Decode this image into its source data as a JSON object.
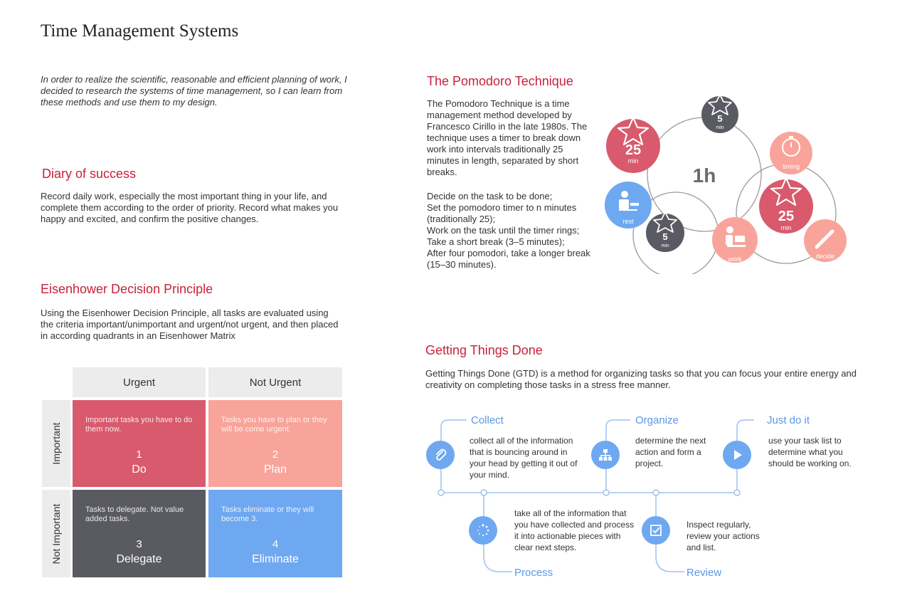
{
  "page": {
    "title": "Time Management Systems",
    "intro": "In order to realize the scientific, reasonable and efficient planning of work, I decided to research the systems of time management, so I can learn from these methods and use them to my design."
  },
  "diary": {
    "title": "Diary of success",
    "text": "Record daily work, especially the most important thing in your life, and complete them according to the order of priority. Record what makes you happy and excited, and confirm the positive changes."
  },
  "eisenhower": {
    "title": "Eisenhower Decision Principle",
    "text": "Using the Eisenhower Decision Principle, all tasks are evaluated using the criteria important/unimportant and urgent/not urgent, and then placed in according quadrants in an Eisenhower Matrix",
    "col_headers": [
      "Urgent",
      "Not Urgent"
    ],
    "row_headers": [
      "Important",
      "Not Important"
    ],
    "quadrants": [
      {
        "desc": "Important tasks you have to do them now.",
        "num": "1",
        "label": "Do",
        "color": "#d85a6c"
      },
      {
        "desc": "Tasks you have to plan or they will be come urgent.",
        "num": "2",
        "label": "Plan",
        "color": "#f8a49a"
      },
      {
        "desc": "Tasks to delegate. Not value added tasks.",
        "num": "3",
        "label": "Delegate",
        "color": "#5a5a63"
      },
      {
        "desc": "Tasks eliminate or they will become 3.",
        "num": "4",
        "label": "Eliminate",
        "color": "#6ea8f0"
      }
    ]
  },
  "pomodoro": {
    "title": "The Pomodoro Technique",
    "text1": "The Pomodoro Technique is a time management method developed by Francesco Cirillo in the late 1980s. The technique uses a timer to break down work into intervals traditionally 25 minutes in length, separated by short breaks.",
    "steps": [
      "Decide on the task to be done;",
      "Set the pomodoro timer to n minutes (traditionally 25);",
      "Work on the task until the timer rings;",
      "Take a short break (3–5 minutes);",
      "After four pomodori, take a longer break (15–30 minutes)."
    ],
    "diagram": {
      "center": "1h",
      "big_num": "25",
      "big_unit": "min",
      "small_num": "5",
      "small_unit": "min",
      "timing": "timing",
      "decide": "decide",
      "work": "work",
      "rest": "rest"
    }
  },
  "gtd": {
    "title": "Getting Things Done",
    "text": "Getting Things Done (GTD) is a method for organizing tasks so that you can focus your entire energy and creativity on completing those tasks in a stress free manner.",
    "steps": [
      {
        "title": "Collect",
        "text": "collect all of the information that is bouncing around in your head by getting it out of your mind.",
        "icon": "paperclip-icon"
      },
      {
        "title": "Process",
        "text": "take all of the information that you have collected and process it into actionable pieces with clear next steps.",
        "icon": "loading-icon"
      },
      {
        "title": "Organize",
        "text": "determine the next action and form a project.",
        "icon": "hierarchy-icon"
      },
      {
        "title": "Review",
        "text": "Inspect regularly, review your actions and list.",
        "icon": "checkbox-icon"
      },
      {
        "title": "Just do it",
        "text": "use your task list to determine what you should be working on.",
        "icon": "play-icon"
      }
    ]
  }
}
